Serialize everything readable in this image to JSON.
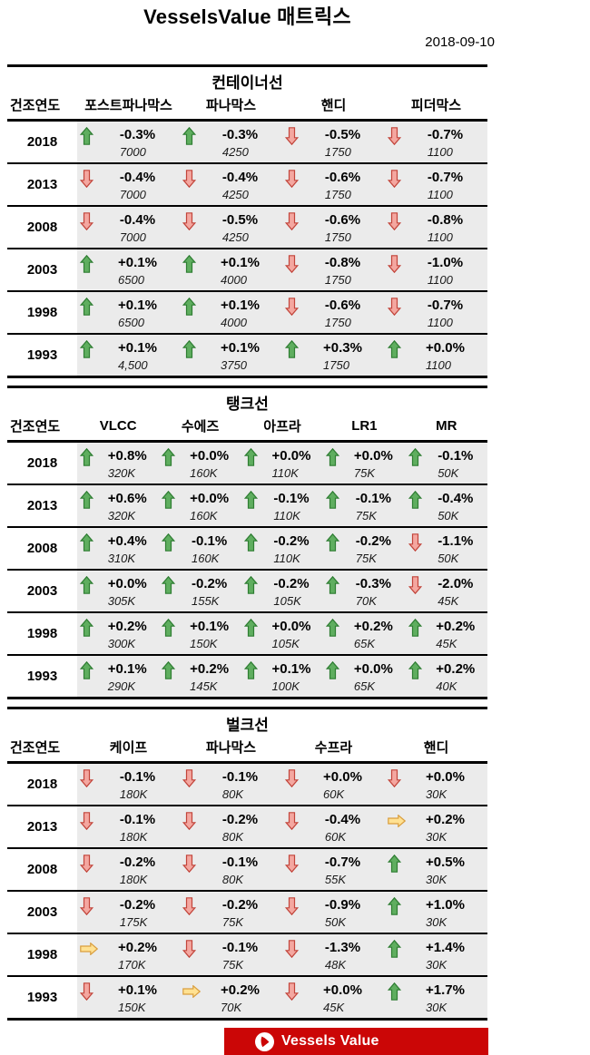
{
  "page_title": "VesselsValue 매트릭스",
  "date": "2018-09-10",
  "year_column_header": "건조연도",
  "colors": {
    "cell_bg": "#ebebeb",
    "arrow_up_fill": "#5fae5f",
    "arrow_up_stroke": "#2e7d32",
    "arrow_down_fill": "#f4a7a0",
    "arrow_down_stroke": "#c2443a",
    "arrow_flat_fill": "#ffe192",
    "arrow_flat_stroke": "#d99e3e",
    "banner_red": "#cb0606"
  },
  "tables": [
    {
      "title": "컨테이너선",
      "columns": [
        "포스트파나막스",
        "파나막스",
        "핸디",
        "피더막스"
      ],
      "rows": [
        {
          "year": "2018",
          "cells": [
            {
              "dir": "up",
              "pct": "-0.3%",
              "val": "7000"
            },
            {
              "dir": "up",
              "pct": "-0.3%",
              "val": "4250"
            },
            {
              "dir": "down",
              "pct": "-0.5%",
              "val": "1750"
            },
            {
              "dir": "down",
              "pct": "-0.7%",
              "val": "1100"
            }
          ]
        },
        {
          "year": "2013",
          "cells": [
            {
              "dir": "down",
              "pct": "-0.4%",
              "val": "7000"
            },
            {
              "dir": "down",
              "pct": "-0.4%",
              "val": "4250"
            },
            {
              "dir": "down",
              "pct": "-0.6%",
              "val": "1750"
            },
            {
              "dir": "down",
              "pct": "-0.7%",
              "val": "1100"
            }
          ]
        },
        {
          "year": "2008",
          "cells": [
            {
              "dir": "down",
              "pct": "-0.4%",
              "val": "7000"
            },
            {
              "dir": "down",
              "pct": "-0.5%",
              "val": "4250"
            },
            {
              "dir": "down",
              "pct": "-0.6%",
              "val": "1750"
            },
            {
              "dir": "down",
              "pct": "-0.8%",
              "val": "1100"
            }
          ]
        },
        {
          "year": "2003",
          "cells": [
            {
              "dir": "up",
              "pct": "+0.1%",
              "val": "6500"
            },
            {
              "dir": "up",
              "pct": "+0.1%",
              "val": "4000"
            },
            {
              "dir": "down",
              "pct": "-0.8%",
              "val": "1750"
            },
            {
              "dir": "down",
              "pct": "-1.0%",
              "val": "1100"
            }
          ]
        },
        {
          "year": "1998",
          "cells": [
            {
              "dir": "up",
              "pct": "+0.1%",
              "val": "6500"
            },
            {
              "dir": "up",
              "pct": "+0.1%",
              "val": "4000"
            },
            {
              "dir": "down",
              "pct": "-0.6%",
              "val": "1750"
            },
            {
              "dir": "down",
              "pct": "-0.7%",
              "val": "1100"
            }
          ]
        },
        {
          "year": "1993",
          "cells": [
            {
              "dir": "up",
              "pct": "+0.1%",
              "val": "4,500"
            },
            {
              "dir": "up",
              "pct": "+0.1%",
              "val": "3750"
            },
            {
              "dir": "up",
              "pct": "+0.3%",
              "val": "1750"
            },
            {
              "dir": "up",
              "pct": "+0.0%",
              "val": "1100"
            }
          ]
        }
      ]
    },
    {
      "title": "탱크선",
      "columns": [
        "VLCC",
        "수에즈",
        "아프라",
        "LR1",
        "MR"
      ],
      "rows": [
        {
          "year": "2018",
          "cells": [
            {
              "dir": "up",
              "pct": "+0.8%",
              "val": "320K"
            },
            {
              "dir": "up",
              "pct": "+0.0%",
              "val": "160K"
            },
            {
              "dir": "up",
              "pct": "+0.0%",
              "val": "110K"
            },
            {
              "dir": "up",
              "pct": "+0.0%",
              "val": "75K"
            },
            {
              "dir": "up",
              "pct": "-0.1%",
              "val": "50K"
            }
          ]
        },
        {
          "year": "2013",
          "cells": [
            {
              "dir": "up",
              "pct": "+0.6%",
              "val": "320K"
            },
            {
              "dir": "up",
              "pct": "+0.0%",
              "val": "160K"
            },
            {
              "dir": "up",
              "pct": "-0.1%",
              "val": "110K"
            },
            {
              "dir": "up",
              "pct": "-0.1%",
              "val": "75K"
            },
            {
              "dir": "up",
              "pct": "-0.4%",
              "val": "50K"
            }
          ]
        },
        {
          "year": "2008",
          "cells": [
            {
              "dir": "up",
              "pct": "+0.4%",
              "val": "310K"
            },
            {
              "dir": "up",
              "pct": "-0.1%",
              "val": "160K"
            },
            {
              "dir": "up",
              "pct": "-0.2%",
              "val": "110K"
            },
            {
              "dir": "up",
              "pct": "-0.2%",
              "val": "75K"
            },
            {
              "dir": "down",
              "pct": "-1.1%",
              "val": "50K"
            }
          ]
        },
        {
          "year": "2003",
          "cells": [
            {
              "dir": "up",
              "pct": "+0.0%",
              "val": "305K"
            },
            {
              "dir": "up",
              "pct": "-0.2%",
              "val": "155K"
            },
            {
              "dir": "up",
              "pct": "-0.2%",
              "val": "105K"
            },
            {
              "dir": "up",
              "pct": "-0.3%",
              "val": "70K"
            },
            {
              "dir": "down",
              "pct": "-2.0%",
              "val": "45K"
            }
          ]
        },
        {
          "year": "1998",
          "cells": [
            {
              "dir": "up",
              "pct": "+0.2%",
              "val": "300K"
            },
            {
              "dir": "up",
              "pct": "+0.1%",
              "val": "150K"
            },
            {
              "dir": "up",
              "pct": "+0.0%",
              "val": "105K"
            },
            {
              "dir": "up",
              "pct": "+0.2%",
              "val": "65K"
            },
            {
              "dir": "up",
              "pct": "+0.2%",
              "val": "45K"
            }
          ]
        },
        {
          "year": "1993",
          "cells": [
            {
              "dir": "up",
              "pct": "+0.1%",
              "val": "290K"
            },
            {
              "dir": "up",
              "pct": "+0.2%",
              "val": "145K"
            },
            {
              "dir": "up",
              "pct": "+0.1%",
              "val": "100K"
            },
            {
              "dir": "up",
              "pct": "+0.0%",
              "val": "65K"
            },
            {
              "dir": "up",
              "pct": "+0.2%",
              "val": "40K"
            }
          ]
        }
      ]
    },
    {
      "title": "벌크선",
      "columns": [
        "케이프",
        "파나막스",
        "수프라",
        "핸디"
      ],
      "rows": [
        {
          "year": "2018",
          "cells": [
            {
              "dir": "down",
              "pct": "-0.1%",
              "val": "180K"
            },
            {
              "dir": "down",
              "pct": "-0.1%",
              "val": "80K"
            },
            {
              "dir": "down",
              "pct": "+0.0%",
              "val": "60K"
            },
            {
              "dir": "down",
              "pct": "+0.0%",
              "val": "30K"
            }
          ]
        },
        {
          "year": "2013",
          "cells": [
            {
              "dir": "down",
              "pct": "-0.1%",
              "val": "180K"
            },
            {
              "dir": "down",
              "pct": "-0.2%",
              "val": "80K"
            },
            {
              "dir": "down",
              "pct": "-0.4%",
              "val": "60K"
            },
            {
              "dir": "flat",
              "pct": "+0.2%",
              "val": "30K"
            }
          ]
        },
        {
          "year": "2008",
          "cells": [
            {
              "dir": "down",
              "pct": "-0.2%",
              "val": "180K"
            },
            {
              "dir": "down",
              "pct": "-0.1%",
              "val": "80K"
            },
            {
              "dir": "down",
              "pct": "-0.7%",
              "val": "55K"
            },
            {
              "dir": "up",
              "pct": "+0.5%",
              "val": "30K"
            }
          ]
        },
        {
          "year": "2003",
          "cells": [
            {
              "dir": "down",
              "pct": "-0.2%",
              "val": "175K"
            },
            {
              "dir": "down",
              "pct": "-0.2%",
              "val": "75K"
            },
            {
              "dir": "down",
              "pct": "-0.9%",
              "val": "50K"
            },
            {
              "dir": "up",
              "pct": "+1.0%",
              "val": "30K"
            }
          ]
        },
        {
          "year": "1998",
          "cells": [
            {
              "dir": "flat",
              "pct": "+0.2%",
              "val": "170K"
            },
            {
              "dir": "down",
              "pct": "-0.1%",
              "val": "75K"
            },
            {
              "dir": "down",
              "pct": "-1.3%",
              "val": "48K"
            },
            {
              "dir": "up",
              "pct": "+1.4%",
              "val": "30K"
            }
          ]
        },
        {
          "year": "1993",
          "cells": [
            {
              "dir": "down",
              "pct": "+0.1%",
              "val": "150K"
            },
            {
              "dir": "flat",
              "pct": "+0.2%",
              "val": "70K"
            },
            {
              "dir": "down",
              "pct": "+0.0%",
              "val": "45K"
            },
            {
              "dir": "up",
              "pct": "+1.7%",
              "val": "30K"
            }
          ]
        }
      ]
    }
  ],
  "footer": {
    "brand": "Vessels Value",
    "logo_icon": "vesselsvalue-sail-icon"
  }
}
